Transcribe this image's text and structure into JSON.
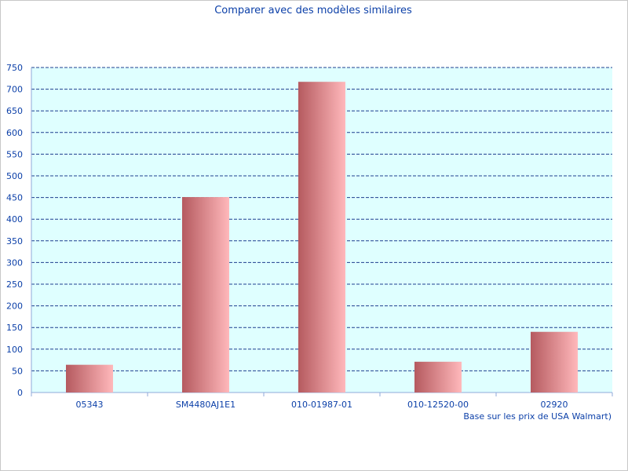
{
  "chart_data": {
    "type": "bar",
    "title": "Comparer avec des modèles similaires",
    "categories": [
      "05343",
      "SM4480AJ1E1",
      "010-01987-01",
      "010-12520-00",
      "02920"
    ],
    "values": [
      64,
      451,
      717,
      71,
      140
    ],
    "ylim": [
      0,
      750
    ],
    "yticks": [
      0,
      50,
      100,
      150,
      200,
      250,
      300,
      350,
      400,
      450,
      500,
      550,
      600,
      650,
      700,
      750
    ],
    "xlabel": "Base sur les prix de USA Walmart)",
    "ylabel": "",
    "grid": true
  },
  "colors": {
    "text": "#0b3fa8",
    "plot_background": "#dfffff",
    "grid": "#1f3f8f",
    "bar_dark": "#b55a5f",
    "bar_light": "#ffb8bb"
  }
}
